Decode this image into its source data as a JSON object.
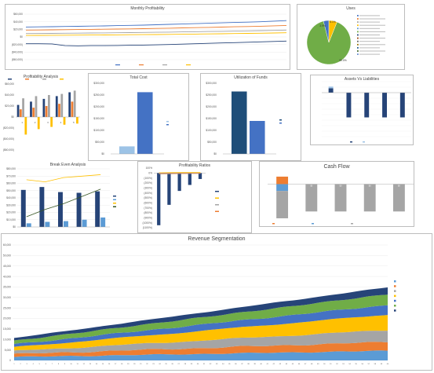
{
  "colors": {
    "blue": "#4472c4",
    "orange": "#ed7d31",
    "gray": "#a5a5a5",
    "yellow": "#ffc000",
    "lightblue": "#5b9bd5",
    "green": "#70ad47",
    "navy": "#264478",
    "dark": "#1f4e79",
    "paleblue": "#9dc3e6",
    "darkgreen": "#375623"
  },
  "chart_data": [
    {
      "id": "monthly_profitability",
      "type": "line",
      "title": "Monthly Profitability",
      "y_ticks": [
        "$60,000",
        "$40,000",
        "$20,000",
        "$0",
        "($20,000)",
        "($40,000)",
        "($60,000)"
      ],
      "ylim": [
        -60000,
        60000
      ],
      "series": [
        {
          "name": "Revenue",
          "color": "#4472c4",
          "values": [
            26000,
            26500,
            27000,
            27500,
            28000,
            28500,
            29000,
            29800,
            30500,
            31000,
            32000,
            33000,
            34000,
            35000,
            36000,
            37000,
            38000,
            39000,
            40000,
            41500,
            43000
          ]
        },
        {
          "name": "Gross Profit",
          "color": "#ed7d31",
          "values": [
            18000,
            18300,
            18700,
            19000,
            19400,
            19800,
            20200,
            20700,
            21200,
            21700,
            22300,
            23000,
            23700,
            24400,
            25100,
            25800,
            26600,
            27400,
            28200,
            29200,
            30200
          ]
        },
        {
          "name": "Operating Profit",
          "color": "#a5a5a5",
          "values": [
            9000,
            9200,
            9400,
            9700,
            10000,
            10300,
            10600,
            11000,
            11400,
            11800,
            12200,
            12700,
            13200,
            13700,
            14200,
            14700,
            15300,
            15900,
            16500,
            17200,
            18000
          ]
        },
        {
          "name": "Profit",
          "color": "#ffc000",
          "values": [
            4000,
            4100,
            4300,
            4500,
            4700,
            4900,
            5100,
            5400,
            5700,
            6000,
            6300,
            6700,
            7100,
            7500,
            7900,
            8300,
            8800,
            9300,
            9800,
            10400,
            11000
          ]
        },
        {
          "name": "",
          "color": "#264478",
          "values": [
            -18000,
            -18000,
            -18500,
            -23000,
            -23500,
            -23000,
            -23000,
            -22500,
            -22000,
            -21500,
            -21000,
            -20000,
            -19000,
            -18000,
            -17000,
            -16000,
            -15000,
            -14000,
            -13000,
            -12000,
            -11000
          ]
        }
      ]
    },
    {
      "id": "uses",
      "type": "pie",
      "title": "Uses",
      "slices": [
        {
          "label": "",
          "value": 90,
          "color": "#70ad47"
        },
        {
          "label": "",
          "value": 4,
          "color": "#4472c4"
        },
        {
          "label": "",
          "value": 6,
          "color": "#ffc000"
        }
      ],
      "data_labels": [
        "3.9%",
        "6.1%",
        "90.0%"
      ]
    },
    {
      "id": "profitability_analysis",
      "type": "bar",
      "title": "Profitability Analysis",
      "categories": [
        "1",
        "2",
        "3",
        "4",
        "5"
      ],
      "ylim": [
        -60000,
        60000
      ],
      "y_ticks": [
        "$60,000",
        "$40,000",
        "$20,000",
        "$0",
        "($20,000)",
        "($40,000)",
        "($60,000)"
      ],
      "series": [
        {
          "name": "",
          "color": "#264478",
          "values": [
            22000,
            28000,
            33000,
            38000,
            45000
          ]
        },
        {
          "name": "",
          "color": "#ed7d31",
          "values": [
            14000,
            17000,
            20000,
            24000,
            28000
          ]
        },
        {
          "name": "",
          "color": "#a5a5a5",
          "values": [
            34000,
            38000,
            40000,
            42000,
            48000
          ]
        },
        {
          "name": "",
          "color": "#ffc000",
          "values": [
            -32000,
            -22000,
            -18000,
            -14000,
            -12000
          ]
        }
      ]
    },
    {
      "id": "total_cost",
      "type": "bar",
      "title": "Total Cost",
      "categories": [
        ""
      ],
      "ylim": [
        0,
        300000
      ],
      "y_ticks": [
        "$300,000",
        "$250,000",
        "$200,000",
        "$150,000",
        "$100,000",
        "$50,000",
        "$0"
      ],
      "series": [
        {
          "name": "",
          "color": "#9dc3e6",
          "values": [
            32000
          ]
        },
        {
          "name": "",
          "color": "#4472c4",
          "values": [
            262000
          ]
        }
      ]
    },
    {
      "id": "utilization_of_funds",
      "type": "bar",
      "title": "Utilization of Funds",
      "categories": [
        ""
      ],
      "ylim": [
        0,
        300000
      ],
      "y_ticks": [
        "$300,000",
        "$250,000",
        "$200,000",
        "$150,000",
        "$100,000",
        "$50,000",
        "$0"
      ],
      "series": [
        {
          "name": "",
          "color": "#1f4e79",
          "values": [
            265000
          ]
        },
        {
          "name": "",
          "color": "#4472c4",
          "values": [
            140000
          ]
        }
      ]
    },
    {
      "id": "assets_vs_liabilities",
      "type": "bar",
      "title": "Assets Vs Liabilities",
      "categories": [
        "1",
        "2",
        "3",
        "4",
        "5"
      ],
      "ylim": [
        -80,
        20
      ],
      "series": [
        {
          "name": "",
          "color": "#264478",
          "values": [
            8,
            -45,
            -45,
            -45,
            -45
          ]
        },
        {
          "name": "",
          "color": "#9dc3e6",
          "values": [
            3,
            0,
            0,
            0,
            0
          ]
        }
      ]
    },
    {
      "id": "break_even_analysis",
      "type": "bar",
      "title": "Break Even Analysis",
      "categories": [
        "1",
        "2",
        "3",
        "4",
        "5"
      ],
      "ylim": [
        0,
        80000
      ],
      "y_ticks": [
        "$80,000",
        "$70,000",
        "$60,000",
        "$50,000",
        "$40,000",
        "$30,000",
        "$20,000",
        "$10,000",
        "$0"
      ],
      "series": [
        {
          "name": "",
          "color": "#264478",
          "values": [
            51000,
            55000,
            48000,
            47000,
            49000
          ]
        },
        {
          "name": "",
          "color": "#5b9bd5",
          "values": [
            5000,
            7000,
            8000,
            10000,
            13000
          ]
        },
        {
          "name": "",
          "color": "#ffc000",
          "type": "line",
          "values": [
            65000,
            62000,
            68000,
            70000,
            72000
          ]
        },
        {
          "name": "",
          "color": "#375623",
          "type": "line",
          "values": [
            14000,
            24000,
            32000,
            42000,
            52000
          ]
        }
      ]
    },
    {
      "id": "profitability_ratios",
      "type": "bar",
      "title": "Profitability Ratios",
      "categories": [
        "1",
        "2",
        "3",
        "4",
        "5"
      ],
      "ylim": [
        -1100,
        100
      ],
      "y_ticks": [
        "100%",
        "0%",
        "(100%)",
        "(200%)",
        "(300%)",
        "(400%)",
        "(500%)",
        "(600%)",
        "(700%)",
        "(800%)",
        "(900%)",
        "(1000%)",
        "(1100%)"
      ],
      "series": [
        {
          "name": "",
          "color": "#264478",
          "values": [
            -1050,
            -640,
            -360,
            -240,
            -120
          ]
        },
        {
          "name": "",
          "color": "#ffc000",
          "type": "line",
          "values": [
            5,
            8,
            10,
            12,
            14
          ]
        },
        {
          "name": "",
          "color": "#a5a5a5",
          "type": "line",
          "values": [
            -20,
            -15,
            -12,
            -10,
            -8
          ]
        },
        {
          "name": "",
          "color": "#ed7d31",
          "type": "line",
          "values": [
            -10,
            -8,
            -7,
            -6,
            -5
          ]
        }
      ]
    },
    {
      "id": "cash_flow",
      "type": "bar",
      "title": "Cash Flow",
      "categories": [
        "1",
        "2",
        "3",
        "4",
        "5"
      ],
      "ylim": [
        -150000,
        50000
      ],
      "series": [
        {
          "name": "",
          "color": "#ed7d31",
          "values": [
            33000,
            0,
            0,
            0,
            0
          ]
        },
        {
          "name": "",
          "color": "#5b9bd5",
          "values": [
            -30000,
            0,
            0,
            0,
            0
          ]
        },
        {
          "name": "",
          "color": "#a5a5a5",
          "values": [
            -120000,
            -120000,
            -120000,
            -120000,
            -120000
          ]
        }
      ],
      "data_labels": [
        "$0",
        "$0",
        "$0",
        "$0",
        "$0"
      ]
    },
    {
      "id": "revenue_segmentation",
      "type": "area",
      "title": "Revenue Segmentation",
      "ylim": [
        0,
        60000
      ],
      "y_ticks": [
        "60,000",
        "50,000",
        "45,000",
        "40,000",
        "35,000",
        "30,000",
        "25,000",
        "20,000",
        "15,000",
        "10,000",
        "5,000",
        "0"
      ],
      "x_count": 60,
      "series": [
        {
          "name": "",
          "color": "#5b9bd5",
          "start": 1800,
          "end": 5000
        },
        {
          "name": "",
          "color": "#ed7d31",
          "start": 1500,
          "end": 4600
        },
        {
          "name": "",
          "color": "#a5a5a5",
          "start": 1600,
          "end": 6200
        },
        {
          "name": "",
          "color": "#ffc000",
          "start": 2000,
          "end": 8000
        },
        {
          "name": "",
          "color": "#4472c4",
          "start": 1500,
          "end": 5000
        },
        {
          "name": "",
          "color": "#70ad47",
          "start": 1800,
          "end": 5600
        },
        {
          "name": "",
          "color": "#264478",
          "start": 1400,
          "end": 3600
        }
      ]
    }
  ]
}
